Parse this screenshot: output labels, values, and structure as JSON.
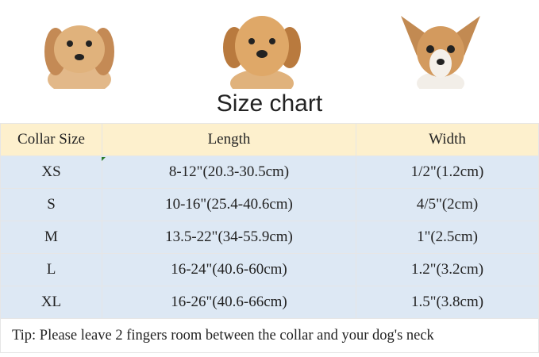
{
  "title": "Size chart",
  "columns": [
    "Collar Size",
    "Length",
    "Width"
  ],
  "rows": [
    [
      "XS",
      "8-12\"(20.3-30.5cm)",
      "1/2\"(1.2cm)"
    ],
    [
      "S",
      "10-16\"(25.4-40.6cm)",
      "4/5\"(2cm)"
    ],
    [
      "M",
      "13.5-22\"(34-55.9cm)",
      "1\"(2.5cm)"
    ],
    [
      "L",
      "16-24\"(40.6-60cm)",
      "1.2\"(3.2cm)"
    ],
    [
      "XL",
      "16-26\"(40.6-66cm)",
      "1.5\"(3.8cm)"
    ]
  ],
  "tip": "Tip: Please leave 2 fingers room between the collar and your dog's neck",
  "colors": {
    "header_bg": "#fdf0cd",
    "row_bg": "#dde8f4"
  }
}
